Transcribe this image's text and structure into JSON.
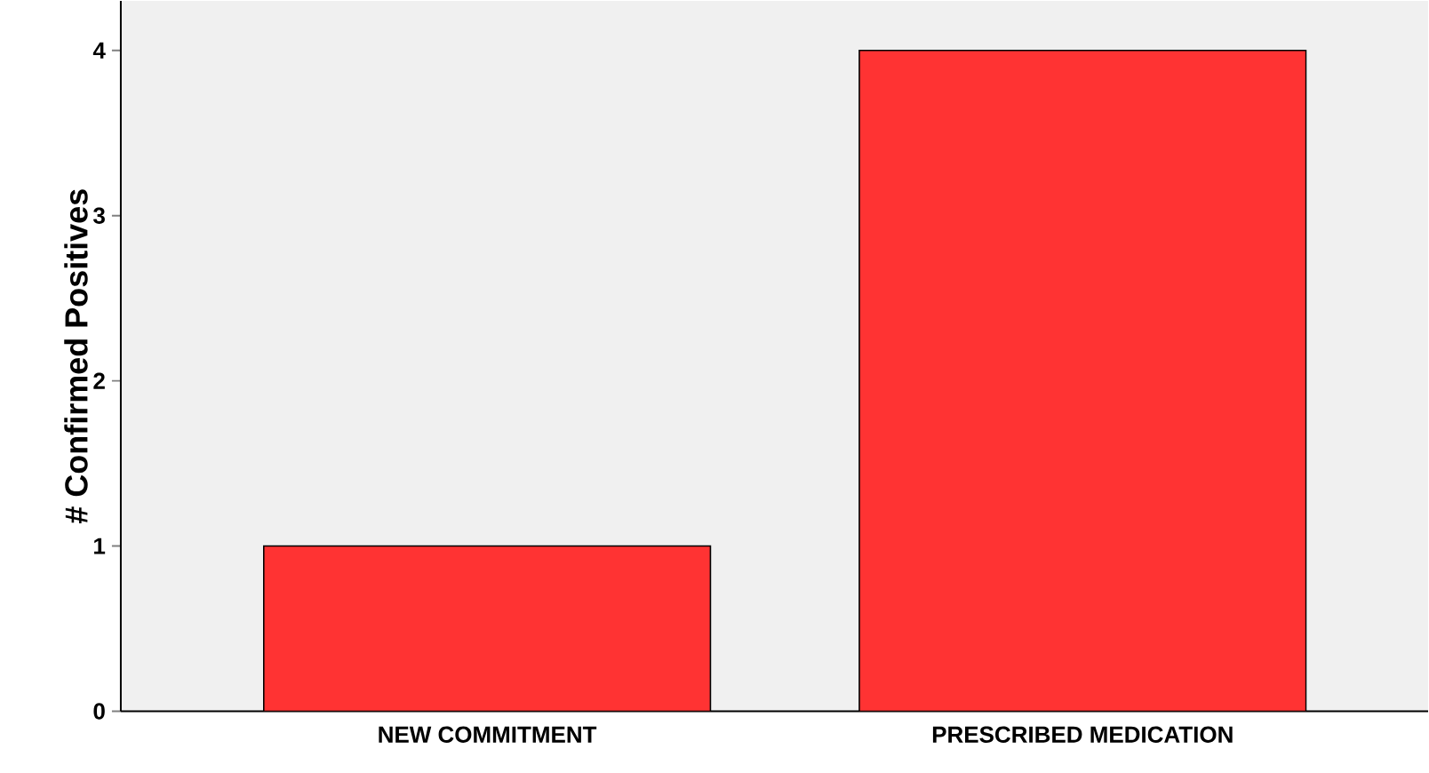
{
  "chart_data": {
    "type": "bar",
    "ylabel": "# Confirmed Positives",
    "categories": [
      "NEW COMMITMENT",
      "PRESCRIBED MEDICATION"
    ],
    "values": [
      1,
      4
    ],
    "color": "#ff3333",
    "ylim": [
      0,
      4.3
    ],
    "yticks": [
      0,
      1,
      2,
      3,
      4
    ],
    "grid": false
  }
}
